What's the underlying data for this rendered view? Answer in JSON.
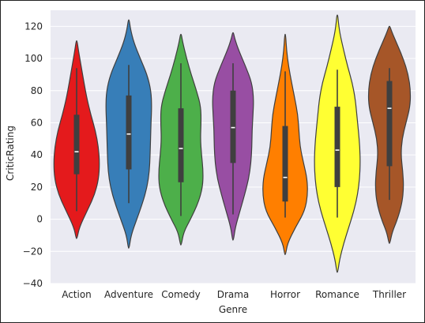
{
  "chart_data": {
    "type": "violin",
    "xlabel": "Genre",
    "ylabel": "CriticRating",
    "ylim": [
      -40,
      130
    ],
    "yticks": [
      -40,
      -20,
      0,
      20,
      40,
      60,
      80,
      100,
      120
    ],
    "ytick_labels": [
      "−40",
      "−20",
      "0",
      "20",
      "40",
      "60",
      "80",
      "100",
      "120"
    ],
    "categories": [
      "Action",
      "Adventure",
      "Comedy",
      "Drama",
      "Horror",
      "Romance",
      "Thriller"
    ],
    "colors": [
      "#e41a1c",
      "#377eb8",
      "#4daf4a",
      "#984ea3",
      "#ff7f00",
      "#ffff33",
      "#a65628"
    ],
    "background": "#eaeaf2",
    "grid": true,
    "violins": [
      {
        "name": "Action",
        "median": 42,
        "q1": 28,
        "q3": 65,
        "whisker_low": 5,
        "whisker_high": 94,
        "profile": [
          [
            -12,
            0.02
          ],
          [
            -5,
            0.12
          ],
          [
            5,
            0.45
          ],
          [
            15,
            0.78
          ],
          [
            25,
            0.96
          ],
          [
            35,
            1.0
          ],
          [
            45,
            0.95
          ],
          [
            55,
            0.82
          ],
          [
            65,
            0.62
          ],
          [
            75,
            0.45
          ],
          [
            85,
            0.32
          ],
          [
            95,
            0.2
          ],
          [
            105,
            0.08
          ],
          [
            111,
            0.02
          ]
        ]
      },
      {
        "name": "Adventure",
        "median": 53,
        "q1": 31,
        "q3": 77,
        "whisker_low": 10,
        "whisker_high": 96,
        "profile": [
          [
            -18,
            0.02
          ],
          [
            -10,
            0.1
          ],
          [
            0,
            0.35
          ],
          [
            10,
            0.6
          ],
          [
            20,
            0.8
          ],
          [
            30,
            0.9
          ],
          [
            40,
            0.93
          ],
          [
            50,
            0.95
          ],
          [
            60,
            0.97
          ],
          [
            70,
            1.0
          ],
          [
            80,
            0.97
          ],
          [
            90,
            0.8
          ],
          [
            100,
            0.5
          ],
          [
            110,
            0.22
          ],
          [
            118,
            0.08
          ],
          [
            124,
            0.02
          ]
        ]
      },
      {
        "name": "Comedy",
        "median": 44,
        "q1": 23,
        "q3": 69,
        "whisker_low": 2,
        "whisker_high": 97,
        "profile": [
          [
            -16,
            0.02
          ],
          [
            -8,
            0.12
          ],
          [
            0,
            0.42
          ],
          [
            10,
            0.75
          ],
          [
            20,
            0.95
          ],
          [
            30,
            0.97
          ],
          [
            40,
            0.9
          ],
          [
            50,
            0.85
          ],
          [
            60,
            0.88
          ],
          [
            70,
            0.87
          ],
          [
            80,
            0.68
          ],
          [
            90,
            0.45
          ],
          [
            100,
            0.25
          ],
          [
            110,
            0.08
          ],
          [
            115,
            0.02
          ]
        ]
      },
      {
        "name": "Drama",
        "median": 57,
        "q1": 35,
        "q3": 80,
        "whisker_low": 3,
        "whisker_high": 97,
        "profile": [
          [
            -13,
            0.02
          ],
          [
            -5,
            0.1
          ],
          [
            5,
            0.3
          ],
          [
            15,
            0.5
          ],
          [
            25,
            0.68
          ],
          [
            35,
            0.78
          ],
          [
            45,
            0.82
          ],
          [
            55,
            0.83
          ],
          [
            65,
            0.87
          ],
          [
            75,
            0.9
          ],
          [
            85,
            0.82
          ],
          [
            95,
            0.55
          ],
          [
            105,
            0.25
          ],
          [
            112,
            0.08
          ],
          [
            116,
            0.02
          ]
        ]
      },
      {
        "name": "Horror",
        "median": 26,
        "q1": 11,
        "q3": 58,
        "whisker_low": 1,
        "whisker_high": 92,
        "profile": [
          [
            -22,
            0.02
          ],
          [
            -15,
            0.1
          ],
          [
            -5,
            0.45
          ],
          [
            5,
            0.85
          ],
          [
            15,
            0.98
          ],
          [
            25,
            0.96
          ],
          [
            35,
            0.8
          ],
          [
            45,
            0.65
          ],
          [
            55,
            0.6
          ],
          [
            65,
            0.55
          ],
          [
            75,
            0.42
          ],
          [
            85,
            0.28
          ],
          [
            95,
            0.15
          ],
          [
            105,
            0.06
          ],
          [
            115,
            0.02
          ]
        ]
      },
      {
        "name": "Romance",
        "median": 43,
        "q1": 20,
        "q3": 70,
        "whisker_low": 1,
        "whisker_high": 93,
        "profile": [
          [
            -33,
            0.02
          ],
          [
            -25,
            0.1
          ],
          [
            -15,
            0.28
          ],
          [
            -5,
            0.5
          ],
          [
            5,
            0.72
          ],
          [
            15,
            0.88
          ],
          [
            25,
            0.97
          ],
          [
            35,
            1.0
          ],
          [
            45,
            0.98
          ],
          [
            55,
            0.92
          ],
          [
            65,
            0.85
          ],
          [
            75,
            0.78
          ],
          [
            85,
            0.65
          ],
          [
            95,
            0.45
          ],
          [
            105,
            0.28
          ],
          [
            115,
            0.12
          ],
          [
            122,
            0.05
          ],
          [
            127,
            0.02
          ]
        ]
      },
      {
        "name": "Thriller",
        "median": 69,
        "q1": 33,
        "q3": 86,
        "whisker_low": 12,
        "whisker_high": 94,
        "profile": [
          [
            -15,
            0.02
          ],
          [
            -8,
            0.12
          ],
          [
            0,
            0.35
          ],
          [
            10,
            0.55
          ],
          [
            20,
            0.62
          ],
          [
            30,
            0.58
          ],
          [
            40,
            0.5
          ],
          [
            50,
            0.55
          ],
          [
            60,
            0.72
          ],
          [
            70,
            0.9
          ],
          [
            80,
            0.92
          ],
          [
            90,
            0.82
          ],
          [
            100,
            0.6
          ],
          [
            110,
            0.3
          ],
          [
            116,
            0.12
          ],
          [
            120,
            0.02
          ]
        ]
      }
    ]
  }
}
